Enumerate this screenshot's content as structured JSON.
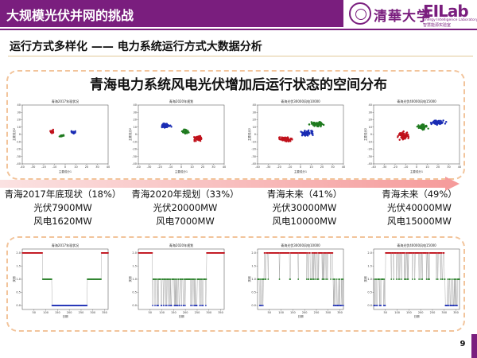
{
  "header": {
    "title": "大规模光伏并网的挑战",
    "university": "清華大学",
    "lab_mark": "EILab",
    "lab_sub_en": "Energy Intelligence Laboratory",
    "lab_sub_cn": "智慧能源实验室"
  },
  "subtitle": "运行方式多样化 —— 电力系统运行方式大数据分析",
  "main_title": "青海电力系统风电光伏增加后运行状态的空间分布",
  "colors": {
    "accent": "#7a1e7e",
    "dashed_border": "#f2c49b",
    "red": "#c0111b",
    "green": "#1e7a1e",
    "blue": "#1a2cb4",
    "arrow": "#f4a3a3"
  },
  "scenarios": [
    {
      "line1": "青海2017年底现状（18%）",
      "line2": "光伏7900MW",
      "line3": "风电1620MW"
    },
    {
      "line1": "青海2020年规划（33%）",
      "line2": "光伏20000MW",
      "line3": "风电7000MW"
    },
    {
      "line1": "青海未来（41%）",
      "line2": "光伏30000MW",
      "line3": "风电10000MW"
    },
    {
      "line1": "青海未来（49%）",
      "line2": "光伏40000MW",
      "line3": "风电15000MW"
    }
  ],
  "scatter_plots": [
    {
      "title": "青海2017年现状况",
      "xlabel": "主要成分1",
      "ylabel": "主要成分2",
      "xticks": [
        "-40",
        "-30",
        "-20",
        "-10",
        "0",
        "10",
        "20",
        "30",
        "40"
      ],
      "yticks": [
        "40",
        "30",
        "20",
        "10",
        "0",
        "-10",
        "-20",
        "-30",
        "-40"
      ]
    },
    {
      "title": "青海2020年规划",
      "xlabel": "主要成分1",
      "ylabel": "主要成分2",
      "xticks": [
        "-40",
        "-30",
        "-20",
        "-10",
        "0",
        "10",
        "20",
        "30",
        "40"
      ],
      "yticks": [
        "40",
        "30",
        "20",
        "10",
        "0",
        "-10",
        "-20",
        "-30",
        "-40"
      ]
    },
    {
      "title": "青海光伏30000风电10000",
      "xlabel": "主要成分1",
      "ylabel": "主要成分2",
      "xticks": [
        "-40",
        "-30",
        "-20",
        "-10",
        "0",
        "10",
        "20",
        "30",
        "40"
      ],
      "yticks": [
        "40",
        "30",
        "20",
        "10",
        "0",
        "-10",
        "-20",
        "-30",
        "-40"
      ]
    },
    {
      "title": "青海光伏40000风电15000",
      "xlabel": "主要成分1",
      "ylabel": "主要成分2",
      "xticks": [
        "-40",
        "-30",
        "-20",
        "-10",
        "0",
        "10",
        "20",
        "30",
        "40"
      ],
      "yticks": [
        "40",
        "30",
        "20",
        "10",
        "0",
        "-10",
        "-20",
        "-30",
        "-40"
      ]
    }
  ],
  "time_plots": [
    {
      "title": "青海2017年现状况",
      "xlabel": "日期",
      "ylabel": "类别",
      "xticks": [
        "50",
        "100",
        "150",
        "200",
        "250",
        "300",
        "350"
      ],
      "yticks": [
        "2.0",
        "1.5",
        "1.0",
        "0.5",
        "0.0"
      ]
    },
    {
      "title": "青海2020年规划",
      "xlabel": "日期",
      "ylabel": "类别",
      "xticks": [
        "50",
        "100",
        "150",
        "200",
        "250",
        "300",
        "350"
      ],
      "yticks": [
        "2.0",
        "1.5",
        "1.0",
        "0.5",
        "0.0"
      ]
    },
    {
      "title": "青海光伏30000风电10000",
      "xlabel": "日期",
      "ylabel": "类别",
      "xticks": [
        "50",
        "100",
        "150",
        "200",
        "250",
        "300",
        "350"
      ],
      "yticks": [
        "2.0",
        "1.5",
        "1.0",
        "0.5",
        "0.0"
      ]
    },
    {
      "title": "青海光伏40000风电15000",
      "xlabel": "日期",
      "ylabel": "类别",
      "xticks": [
        "50",
        "100",
        "150",
        "200",
        "250",
        "300",
        "350"
      ],
      "yticks": [
        "2.0",
        "1.5",
        "1.0",
        "0.5",
        "0.0"
      ]
    }
  ],
  "page_number": "9"
}
